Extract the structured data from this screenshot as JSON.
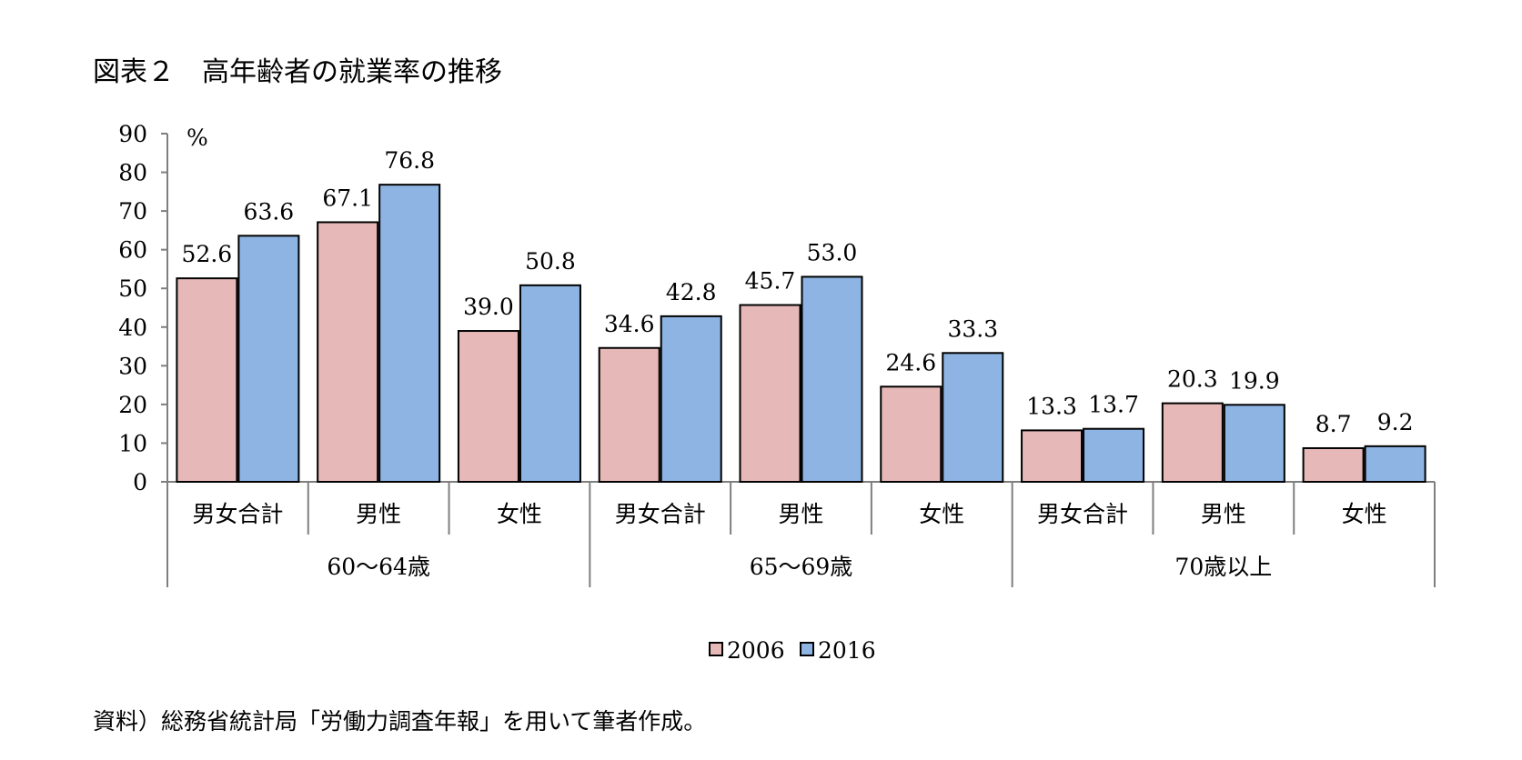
{
  "title": "図表２　高年齢者の就業率の推移",
  "source": "資料）総務省統計局「労働力調査年報」を用いて筆者作成。",
  "chart_data": {
    "type": "bar",
    "unit_label": "%",
    "ylim": [
      0,
      90
    ],
    "yticks": [
      "0",
      "10",
      "20",
      "30",
      "40",
      "50",
      "60",
      "70",
      "80",
      "90"
    ],
    "groups": [
      {
        "label": "60〜64歳",
        "categories": [
          "男女合計",
          "男性",
          "女性"
        ]
      },
      {
        "label": "65〜69歳",
        "categories": [
          "男女合計",
          "男性",
          "女性"
        ]
      },
      {
        "label": "70歳以上",
        "categories": [
          "男女合計",
          "男性",
          "女性"
        ]
      }
    ],
    "series": [
      {
        "name": "2006",
        "color": "#e6b9b8",
        "values": [
          52.6,
          67.1,
          39.0,
          34.6,
          45.7,
          24.6,
          13.3,
          20.3,
          8.7
        ],
        "labels": [
          "52.6",
          "67.1",
          "39.0",
          "34.6",
          "45.7",
          "24.6",
          "13.3",
          "20.3",
          "8.7"
        ]
      },
      {
        "name": "2016",
        "color": "#8eb4e3",
        "values": [
          63.6,
          76.8,
          50.8,
          42.8,
          53.0,
          33.3,
          13.7,
          19.9,
          9.2
        ],
        "labels": [
          "63.6",
          "76.8",
          "50.8",
          "42.8",
          "53.0",
          "33.3",
          "13.7",
          "19.9",
          "9.2"
        ]
      }
    ],
    "legend_position": "bottom",
    "grid": false
  }
}
